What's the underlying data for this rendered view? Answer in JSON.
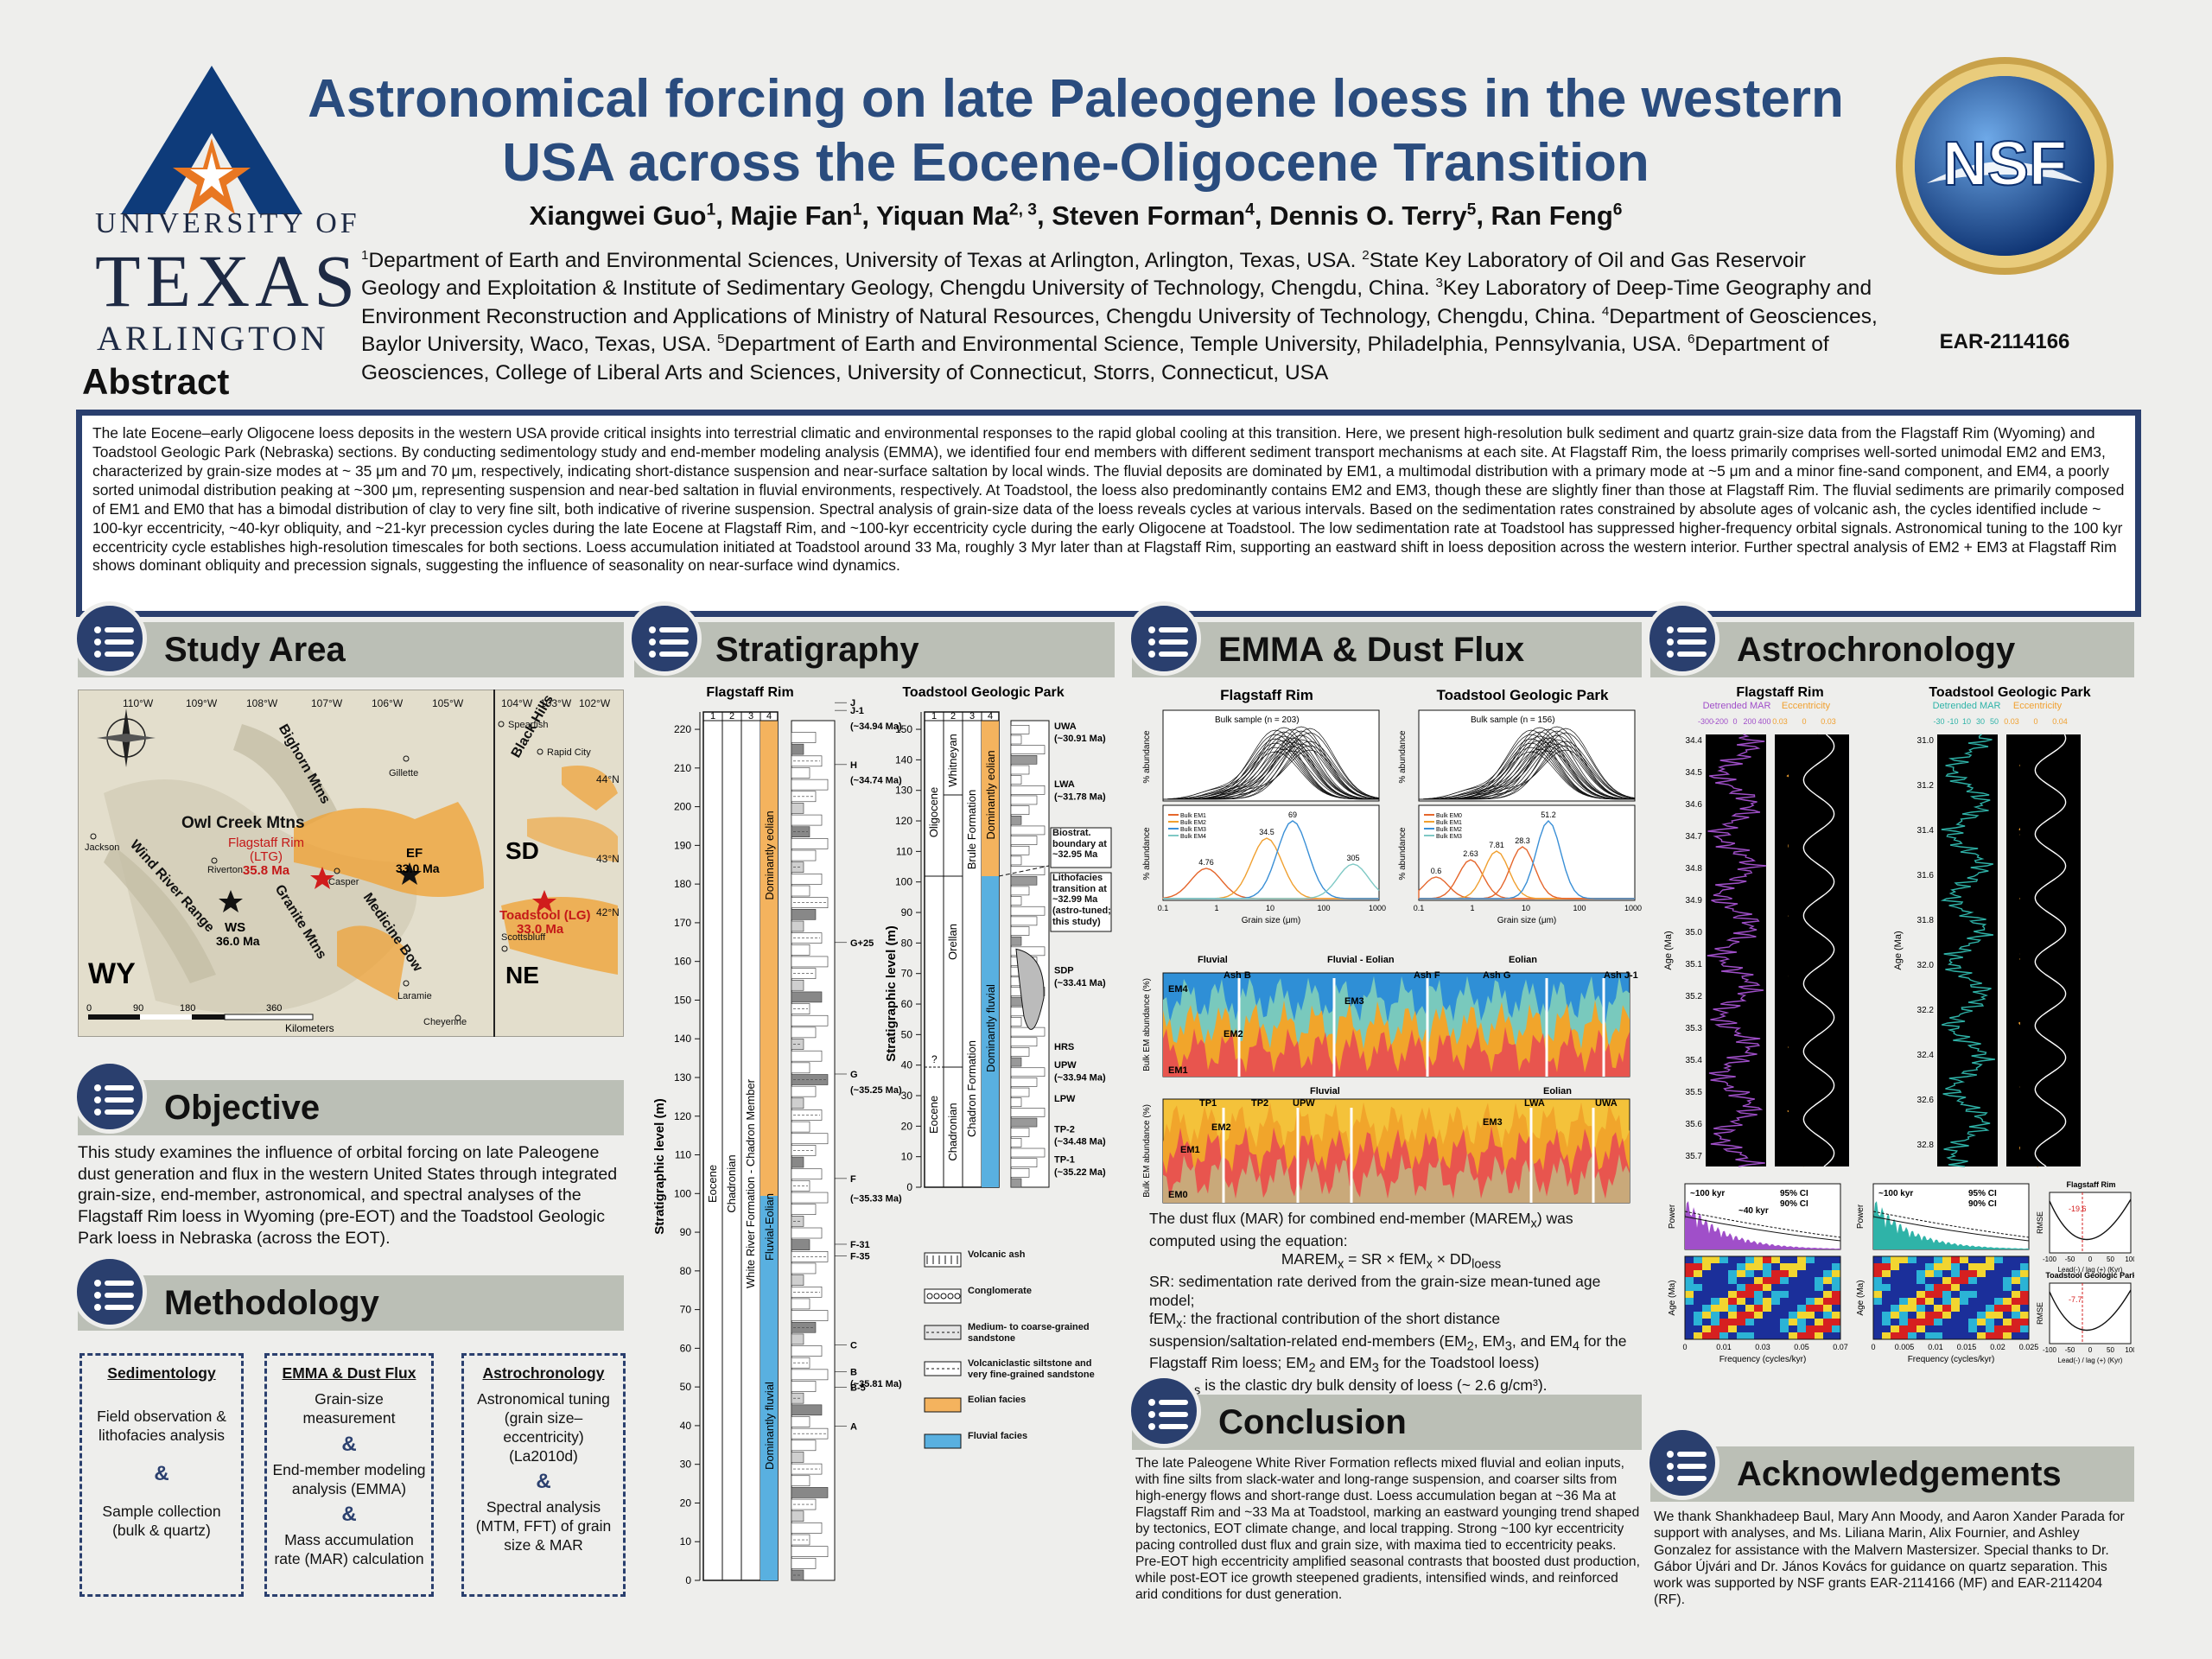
{
  "header": {
    "title_line1": "Astronomical forcing on late Paleogene loess in the western",
    "title_line2": "USA across the Eocene-Oligocene Transition",
    "authors": [
      {
        "name": "Xiangwei Guo",
        "aff": "1"
      },
      {
        "name": "Majie Fan",
        "aff": "1"
      },
      {
        "name": "Yiquan Ma",
        "aff": "2, 3"
      },
      {
        "name": "Steven Forman",
        "aff": "4"
      },
      {
        "name": "Dennis O. Terry",
        "aff": "5"
      },
      {
        "name": "Ran Feng",
        "aff": "6"
      }
    ],
    "affiliations": [
      {
        "n": "1",
        "text": "Department of Earth and Environmental Sciences, University of Texas at Arlington, Arlington, Texas, USA. "
      },
      {
        "n": "2",
        "text": "State Key Laboratory of Oil and Gas Reservoir Geology and Exploitation & Institute of Sedimentary Geology, Chengdu University of Technology, Chengdu, China. "
      },
      {
        "n": "3",
        "text": "Key Laboratory of Deep-Time Geography and Environment Reconstruction and Applications of Ministry of Natural Resources, Chengdu University of Technology, Chengdu, China. "
      },
      {
        "n": "4",
        "text": "Department of Geosciences, Baylor University, Waco, Texas, USA. "
      },
      {
        "n": "5",
        "text": "Department of Earth and Environmental Science, Temple University, Philadelphia, Pennsylvania, USA. "
      },
      {
        "n": "6",
        "text": "Department of Geosciences, College of Liberal Arts and Sciences, University of Connecticut, Storrs, Connecticut, USA"
      }
    ],
    "uta": {
      "line1": "UNIVERSITY OF",
      "line2": "TEXAS",
      "line3": "ARLINGTON"
    },
    "nsf": {
      "logo_text": "NSF",
      "grant": "EAR-2114166"
    },
    "colors": {
      "title": "#2a4c7e",
      "navy": "#2a3f6e",
      "orange": "#e87722"
    }
  },
  "abstract": {
    "heading": "Abstract",
    "text": "The late Eocene–early Oligocene loess deposits in the western USA provide critical insights into terrestrial climatic and environmental responses to the rapid global cooling at this transition. Here, we present high-resolution bulk sediment and quartz grain-size data from the Flagstaff Rim (Wyoming) and Toadstool Geologic Park (Nebraska) sections. By conducting sedimentology study and end-member modeling analysis (EMMA), we identified four end members with different sediment transport mechanisms at each site. At Flagstaff Rim, the loess primarily comprises well-sorted unimodal EM2 and EM3, characterized by grain-size modes at ~ 35 μm and 70 μm, respectively, indicating short-distance suspension and near-surface saltation by local winds. The fluvial deposits are dominated by EM1, a multimodal distribution with a primary mode at ~5 μm and a minor fine-sand component, and EM4, a poorly sorted unimodal distribution peaking at ~300 μm, representing suspension and near-bed saltation in fluvial environments, respectively. At Toadstool, the loess also predominantly contains EM2 and EM3, though these are slightly finer than those at Flagstaff Rim. The fluvial sediments are primarily composed of EM1 and EM0 that has a bimodal distribution of clay to very fine silt, both indicative of riverine suspension. Spectral analysis of grain-size data of the loess reveals cycles at various intervals. Based on the sedimentation rates constrained by absolute ages of volcanic ash, the cycles identified include ~ 100-kyr eccentricity, ~40-kyr obliquity, and ~21-kyr precession cycles during the late Eocene at Flagstaff Rim, and ~100-kyr eccentricity cycle during the early Oligocene at Toadstool. The low sedimentation rate at Toadstool has suppressed higher-frequency orbital signals. Astronomical tuning to the 100 kyr eccentricity cycle establishes high-resolution timescales for both sections. Loess accumulation initiated at Toadstool around 33 Ma, roughly 3 Myr later than at Flagstaff Rim, supporting an eastward shift in loess deposition across the western interior. Further spectral analysis of EM2 + EM3 at Flagstaff Rim shows dominant obliquity and precession signals, suggesting the influence of seasonality on near-surface wind dynamics."
  },
  "study_area": {
    "heading": "Study Area",
    "lon_labels": [
      "110°W",
      "109°W",
      "108°W",
      "107°W",
      "106°W",
      "105°W"
    ],
    "inset_lon_labels": [
      "104°W",
      "103°W",
      "102°W"
    ],
    "lat_labels": [
      "44°N",
      "43°N",
      "42°N"
    ],
    "places": [
      "Bighorn Mtns",
      "Owl Creek Mtns",
      "Wind River Range",
      "Granite Mtns",
      "Medicine Bow",
      "Black Hills",
      "Jackson",
      "Riverton",
      "Casper",
      "Gillette",
      "Spearfish",
      "Rapid City",
      "Scottsbluff",
      "Laramie",
      "Cheyenne"
    ],
    "sites": {
      "flagstaff": "Flagstaff Rim",
      "flagstaff_code": "(LTG)",
      "flagstaff_age": "35.8 Ma",
      "ef": "EF",
      "ef_age": "33.0 Ma",
      "ws": "WS",
      "ws_age": "36.0 Ma",
      "toadstool": "Toadstool (LG)",
      "toadstool_age": "33.0 Ma"
    },
    "states": [
      "WY",
      "SD",
      "NE"
    ],
    "scale": {
      "ticks": [
        "0",
        "90",
        "180",
        "360"
      ],
      "unit": "Kilometers"
    }
  },
  "objective": {
    "heading": "Objective",
    "text": "This study examines the influence of orbital forcing on late Paleogene dust generation and flux in the western United States through integrated grain-size, end-member, astronomical, and spectral analyses of the Flagstaff Rim loess in Wyoming (pre-EOT) and the Toadstool Geologic Park loess in Nebraska (across the EOT)."
  },
  "methodology": {
    "heading": "Methodology",
    "boxes": [
      {
        "title": "Sedimentology",
        "items": [
          "Field observation & lithofacies analysis",
          "Sample collection (bulk & quartz)"
        ]
      },
      {
        "title": "EMMA & Dust Flux",
        "items": [
          "Grain-size measurement",
          "End-member modeling analysis (EMMA)",
          "Mass accumulation rate (MAR) calculation"
        ]
      },
      {
        "title": "Astrochronology",
        "items": [
          "Astronomical tuning (grain size–eccentricity) (La2010d)",
          "Spectral analysis (MTM, FFT) of grain size & MAR"
        ]
      }
    ],
    "amp": "&"
  },
  "stratigraphy": {
    "heading": "Stratigraphy",
    "flagstaff_title": "Flagstaff Rim",
    "toadstool_title": "Toadstool Geologic Park",
    "col_numbers": [
      "1",
      "2",
      "3",
      "4"
    ],
    "y_label": "Stratigraphic level (m)",
    "flagstaff_y_ticks": [
      "0",
      "10",
      "20",
      "30",
      "40",
      "50",
      "60",
      "70",
      "80",
      "90",
      "100",
      "110",
      "120",
      "130",
      "140",
      "150",
      "160",
      "170",
      "180",
      "190",
      "200",
      "210",
      "220"
    ],
    "toadstool_y_ticks": [
      "0",
      "10",
      "20",
      "30",
      "40",
      "50",
      "60",
      "70",
      "80",
      "90",
      "100",
      "110",
      "120",
      "130",
      "140",
      "150"
    ],
    "flagstaff_cols": [
      "Eocene",
      "Chadronian",
      "White River Formation - Chadron Member",
      "Fluvial-Eolian"
    ],
    "flagstaff_facies": [
      "Dominantly eolian",
      "Dominantly fluvial"
    ],
    "flagstaff_ash": [
      "J",
      "J-1",
      "(~34.94 Ma)",
      "H",
      "(~34.74 Ma)",
      "G+25",
      "G",
      "(~35.25 Ma)",
      "F",
      "(~35.33 Ma)",
      "F-31",
      "F-35",
      "C",
      "B",
      "(~35.81 Ma)",
      "B-5",
      "A"
    ],
    "toadstool_cols": [
      "Oligocene",
      "Eocene",
      "Whitneyan",
      "Orellan",
      "Chadronian",
      "Brule Formation",
      "Chadron Formation",
      "Dominantly eolian",
      "Dominantly fluvial"
    ],
    "toadstool_ash": [
      "UWA",
      "(~30.91 Ma)",
      "LWA",
      "(~31.78 Ma)",
      "SDP",
      "(~33.41 Ma)",
      "HRS",
      "UPW",
      "(~33.94 Ma)",
      "LPW",
      "TP-2",
      "(~34.48 Ma)",
      "TP-1",
      "(~35.22 Ma)"
    ],
    "toadstool_notes": [
      "Biostrat. boundary at ~32.95 Ma",
      "Lithofacies transition at ~32.99 Ma (astro-tuned; this study)"
    ],
    "toadstool_question": "?",
    "legend": [
      "Volcanic ash",
      "Conglomerate",
      "Medium- to coarse-grained sandstone",
      "Volcaniclastic siltstone and very fine-grained sandstone",
      "Eolian facies",
      "Fluvial facies"
    ],
    "colors": {
      "eolian": "#f4b35e",
      "fluvial": "#59b0e0"
    }
  },
  "emma": {
    "heading": "EMMA & Dust Flux",
    "panel_titles": [
      "Flagstaff Rim",
      "Toadstool Geologic Park"
    ],
    "legend_flagstaff": "Bulk sample (n = 203)",
    "legend_toadstool": "Bulk sample (n = 156)",
    "y_label": "% abundance",
    "x_label": "Grain size (μm)",
    "x_ticks": [
      "0.1",
      "1",
      "10",
      "100",
      "1000"
    ],
    "em_labels_flagstaff": [
      "Bulk EM1",
      "Bulk EM2",
      "Bulk EM3",
      "Bulk EM4"
    ],
    "em_labels_toadstool": [
      "Bulk EM0",
      "Bulk EM1",
      "Bulk EM2",
      "Bulk EM3"
    ],
    "mode_labels_flagstaff": [
      "4.76",
      "34.5",
      "69",
      "305"
    ],
    "mode_labels_toadstool": [
      "0.6",
      "2.63",
      "7.81",
      "28.3",
      "51.2"
    ],
    "bar_labels_top": [
      "Fluvial",
      "Fluvial - Eolian",
      "Eolian",
      "Ash B",
      "Ash F",
      "Ash G",
      "Ash J-1",
      "EM4",
      "EM3",
      "EM2",
      "EM1"
    ],
    "bar_labels_bottom": [
      "Fluvial",
      "Eolian",
      "TP1",
      "TP2",
      "UPW",
      "LWA",
      "UWA",
      "EM2",
      "EM1",
      "EM3",
      "EM0"
    ],
    "bar_y_label": "Bulk EM abundance (%)",
    "text_intro": "The dust flux (MAR) for combined end-member (MAREM",
    "text_intro_sub": "x",
    "text_intro_end": ") was computed using the equation:",
    "equation": "MAREM",
    "equation_rest": " = SR × fEM",
    "equation_rest2": " × DD",
    "equation_sub_loess": "loess",
    "sr_text": "SR: sedimentation rate derived from the grain-size mean-tuned age model;",
    "fem_text": "fEM",
    "fem_rest": ": the fractional contribution of the short distance suspension/saltation-related end-members (EM",
    "fem_rest2": ", EM",
    "fem_rest3": ", and EM",
    "fem_rest4": " for the Flagstaff Rim loess; EM",
    "fem_rest5": " and EM",
    "fem_rest6": " for the Toadstool loess)",
    "dd_text": "DD",
    "dd_rest": " is the clastic dry bulk density of loess (~ 2.6 g/cm³).",
    "subs": {
      "x": "x",
      "two": "2",
      "three": "3",
      "four": "4",
      "loess": "loess"
    }
  },
  "conclusion": {
    "heading": "Conclusion",
    "text": "The late Paleogene White River Formation reflects mixed fluvial and eolian inputs, with fine silts from slack-water and long-range suspension, and coarser silts from high-energy flows and short-range dust. Loess accumulation began at ~36 Ma at Flagstaff Rim and ~33 Ma at Toadstool, marking an eastward younging trend shaped by tectonics, EOT climate change, and local trapping. Strong ~100 kyr eccentricity pacing controlled dust flux and grain size, with maxima tied to eccentricity peaks. Pre-EOT high eccentricity amplified seasonal contrasts that boosted dust production, while post-EOT ice growth steepened gradients, intensified winds, and reinforced arid conditions for dust generation."
  },
  "astrochronology": {
    "heading": "Astrochronology",
    "titles": [
      "Flagstaff Rim",
      "Toadstool Geologic Park"
    ],
    "flagstaff_mar_label": "Detrended MAR",
    "flagstaff_mar_ticks": [
      "-300",
      "-200",
      "0",
      "200",
      "400"
    ],
    "ecc_label": "Eccentricity",
    "flagstaff_ecc_ticks": [
      "0.03",
      "0",
      "0.03"
    ],
    "toadstool_mar_ticks": [
      "-30",
      "-10",
      "10",
      "30",
      "50"
    ],
    "toadstool_ecc_ticks": [
      "0.03",
      "0",
      "0.04"
    ],
    "age_label": "Age (Ma)",
    "flagstaff_ages": [
      "34.4",
      "34.5",
      "34.6",
      "34.7",
      "34.8",
      "34.9",
      "35.0",
      "35.1",
      "35.2",
      "35.3",
      "35.4",
      "35.5",
      "35.6",
      "35.7"
    ],
    "toadstool_ages": [
      "31.0",
      "31.2",
      "31.4",
      "31.6",
      "31.8",
      "32.0",
      "32.2",
      "32.4",
      "32.6",
      "32.8"
    ],
    "power_label": "Power",
    "spec_labels_f": [
      "~100 kyr",
      "~40 kyr",
      "95% CI",
      "90% CI"
    ],
    "spec_labels_t": [
      "~100 kyr",
      "95% CI",
      "90% CI"
    ],
    "freq_label": "Frequency (cycles/kyr)",
    "freq_ticks_f": [
      "0",
      "0.01",
      "0.03",
      "0.05",
      "0.07"
    ],
    "freq_ticks_t": [
      "0",
      "0.005",
      "0.01",
      "0.015",
      "0.02",
      "0.025"
    ],
    "rmse_titles": [
      "Flagstaff Rim",
      "Toadstool Geologic Park"
    ],
    "rmse_label": "RMSE",
    "lag_label": "Lead(-) / lag (+) (Kyr)",
    "lag_values": [
      "-19.6",
      "-7.7"
    ],
    "lag_ticks": [
      "-100",
      "-50",
      "0",
      "50",
      "100"
    ],
    "colors": {
      "mar": "#a04fc9",
      "ecc": "#f0a030",
      "mar_t": "#2fb3a8"
    }
  },
  "acknowledgements": {
    "heading": "Acknowledgements",
    "text": "We thank Shankhadeep Baul, Mary Ann Moody, and Aaron Xander Parada for support with analyses, and Ms. Liliana Marin, Alix Fournier, and Ashley Gonzalez for assistance with the Malvern Mastersizer. Special thanks to Dr. Gábor Újvári and Dr. János Kovács for guidance on quartz separation. This work was supported by NSF grants EAR-2114166 (MF) and EAR-2114204 (RF)."
  }
}
